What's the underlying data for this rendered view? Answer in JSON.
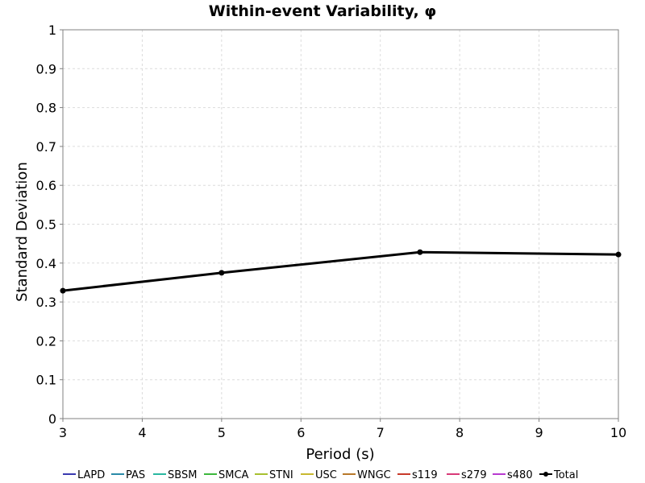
{
  "chart_data": {
    "type": "line",
    "title": "Within-event Variability, φ",
    "xlabel": "Period (s)",
    "ylabel": "Standard Deviation",
    "xlim": [
      3,
      10
    ],
    "ylim": [
      0,
      1
    ],
    "x_ticks": [
      3,
      4,
      5,
      6,
      7,
      8,
      9,
      10
    ],
    "y_ticks": [
      0,
      0.1,
      0.2,
      0.3,
      0.4,
      0.5,
      0.6,
      0.7,
      0.8,
      0.9,
      1
    ],
    "grid": true,
    "legend_position": "bottom",
    "series": [
      {
        "name": "LAPD",
        "color": "#3a3ab0",
        "x": [],
        "y": []
      },
      {
        "name": "PAS",
        "color": "#2a8aa8",
        "x": [],
        "y": []
      },
      {
        "name": "SBSM",
        "color": "#2ab8a0",
        "x": [],
        "y": []
      },
      {
        "name": "SMCA",
        "color": "#3cb83c",
        "x": [],
        "y": []
      },
      {
        "name": "STNI",
        "color": "#a8c030",
        "x": [],
        "y": []
      },
      {
        "name": "USC",
        "color": "#c8b830",
        "x": [],
        "y": []
      },
      {
        "name": "WNGC",
        "color": "#b8782a",
        "x": [],
        "y": []
      },
      {
        "name": "s119",
        "color": "#c83a2a",
        "x": [],
        "y": []
      },
      {
        "name": "s279",
        "color": "#d83a78",
        "x": [],
        "y": []
      },
      {
        "name": "s480",
        "color": "#b83ad0",
        "x": [],
        "y": []
      },
      {
        "name": "Total",
        "color": "#000000",
        "markers": true,
        "x": [
          3,
          5,
          7.5,
          10
        ],
        "y": [
          0.329,
          0.375,
          0.428,
          0.422
        ]
      }
    ]
  }
}
